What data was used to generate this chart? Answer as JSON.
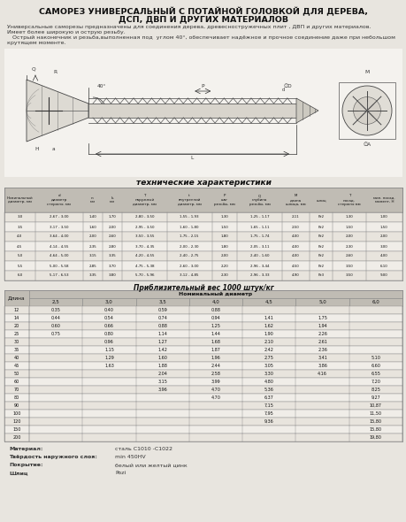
{
  "title1": "САМОРЕЗ УНИВЕРСАЛЬНЫЙ С ПОТАЙНОЙ ГОЛОВКОЙ ДЛЯ ДЕРЕВА,",
  "title2": "ДСП, ДВП И ДРУГИХ МАТЕРИАЛОВ",
  "desc1": "Универсальные саморезы предназначены для соединения дерева, древесностружечных плит , ДВП и других материалов.",
  "desc2": "Имеет более широкую и острую резьбу.",
  "desc3": "   Острый наконечник и резьба,выполненная под  углом 40°, обеспечивает надёжное и прочное соединение даже при небольшом",
  "desc4": "крутящем моменте.",
  "tech_title": "технические характеристики",
  "weight_title": "Приблизительный вес 1000 штук/кг",
  "weight_col1": "Длина",
  "weight_diam_header": "Номинальный диаметр",
  "weight_diameters": [
    "2,5",
    "3,0",
    "3,5",
    "4,0",
    "4,5",
    "5,0",
    "6,0"
  ],
  "weight_rows": [
    [
      "12",
      "0,35",
      "0,40",
      "0,59",
      "0,88",
      "",
      "",
      ""
    ],
    [
      "14",
      "0,44",
      "0,54",
      "0,74",
      "0,94",
      "1,41",
      "1,75",
      ""
    ],
    [
      "20",
      "0,60",
      "0,66",
      "0,88",
      "1,25",
      "1,62",
      "1,94",
      ""
    ],
    [
      "25",
      "0,75",
      "0,80",
      "1,14",
      "1,44",
      "1,90",
      "2,26",
      ""
    ],
    [
      "30",
      "",
      "0,96",
      "1,27",
      "1,68",
      "2,10",
      "2,61",
      ""
    ],
    [
      "35",
      "",
      "1,15",
      "1,42",
      "1,87",
      "2,42",
      "2,36",
      ""
    ],
    [
      "40",
      "",
      "1,29",
      "1,60",
      "1,96",
      "2,75",
      "3,41",
      "5,10"
    ],
    [
      "45",
      "",
      "1,63",
      "1,88",
      "2,44",
      "3,05",
      "3,86",
      "6,60"
    ],
    [
      "50",
      "",
      "",
      "2,04",
      "2,58",
      "3,30",
      "4,16",
      "6,55"
    ],
    [
      "60",
      "",
      "",
      "3,15",
      "3,99",
      "4,80",
      "",
      "7,20"
    ],
    [
      "70",
      "",
      "",
      "3,96",
      "4,70",
      "5,36",
      "",
      "8,25"
    ],
    [
      "80",
      "",
      "",
      "",
      "4,70",
      "6,37",
      "",
      "9,27"
    ],
    [
      "90",
      "",
      "",
      "",
      "",
      "7,15",
      "",
      "10,87"
    ],
    [
      "100",
      "",
      "",
      "",
      "",
      "7,95",
      "",
      "11,50"
    ],
    [
      "120",
      "",
      "",
      "",
      "",
      "9,36",
      "",
      "15,80"
    ],
    [
      "150",
      "",
      "",
      "",
      "",
      "",
      "",
      "15,80"
    ],
    [
      "200",
      "",
      "",
      "",
      "",
      "",
      "",
      "19,80"
    ]
  ],
  "tech_col_headers": [
    "Номинальный\nдиаметр, мм",
    "d\nдиаметр\nстержня, мм",
    "п, мм",
    "k, мм",
    "T\nнаружный\nдиаметр, мм",
    "t\nвнутренний\nдиаметр, мм",
    "P\nшаг\nрезьбы, мм",
    "Q\nглубина\nрезьбы, мм",
    "M\nдлина\nшлица, мм",
    "шлиц",
    "T\nпосад.\nстержня, мм",
    "мин. посад.\nмомент, Н"
  ],
  "tech_rows": [
    [
      "3,0",
      "2,67 - 3,00",
      "1,40",
      "1,70",
      "2,80 - 3,50",
      "1,55 - 1,93",
      "1,30",
      "1,25 - 1,17",
      "2,11",
      "Pz2",
      "1,30",
      "1,00"
    ],
    [
      "3,5",
      "3,17 - 3,50",
      "1,60",
      "2,00",
      "2,95 - 3,50",
      "1,60 - 1,80",
      "1,50",
      "1,65 - 1,11",
      "2,50",
      "Pz2",
      "1,50",
      "1,50"
    ],
    [
      "4,0",
      "3,64 - 4,00",
      "2,00",
      "2,60",
      "3,50 - 3,55",
      "1,75 - 2,15",
      "1,80",
      "1,75 - 1,74",
      "4,00",
      "Pz2",
      "2,00",
      "2,00"
    ],
    [
      "4,5",
      "4,14 - 4,55",
      "2,35",
      "2,80",
      "3,70 - 4,35",
      "2,00 - 2,30",
      "1,80",
      "2,05 - 3,11",
      "4,00",
      "Pz2",
      "2,30",
      "3,00"
    ],
    [
      "5,0",
      "4,64 - 5,00",
      "3,15",
      "3,35",
      "4,20 - 4,55",
      "2,40 - 2,75",
      "2,00",
      "2,40 - 1,60",
      "4,00",
      "Pz2",
      "2,60",
      "4,00"
    ],
    [
      "5,5",
      "5,00 - 5,58",
      "2,85",
      "3,70",
      "4,75 - 5,38",
      "2,60 - 3,00",
      "2,20",
      "2,96 - 3,44",
      "4,50",
      "Pz2",
      "3,50",
      "6,10"
    ],
    [
      "6,0",
      "5,17 - 6,53",
      "3,35",
      "3,80",
      "5,70 - 5,96",
      "3,12 - 4,85",
      "2,30",
      "2,96 - 3,33",
      "4,90",
      "Pz3",
      "3,50",
      "9,00"
    ]
  ],
  "material_label": "Материал:",
  "material_value": "сталь C1010 -C1022",
  "hardness_label": "Твёрдость наружного слоя:",
  "hardness_value": "min 450HV",
  "coating_label": "Покрытие:",
  "coating_value": "белый или желтый цинк",
  "slot_label": "Шлиц",
  "slot_value": "Pozi",
  "bg_color": "#e8e5df",
  "white_bg": "#f4f2ee",
  "table_header_color": "#c0bcb4",
  "table_row_even": "#e8e4dd",
  "table_row_odd": "#f0ede8",
  "border_color": "#888888",
  "text_dark": "#111111",
  "text_mid": "#333333"
}
